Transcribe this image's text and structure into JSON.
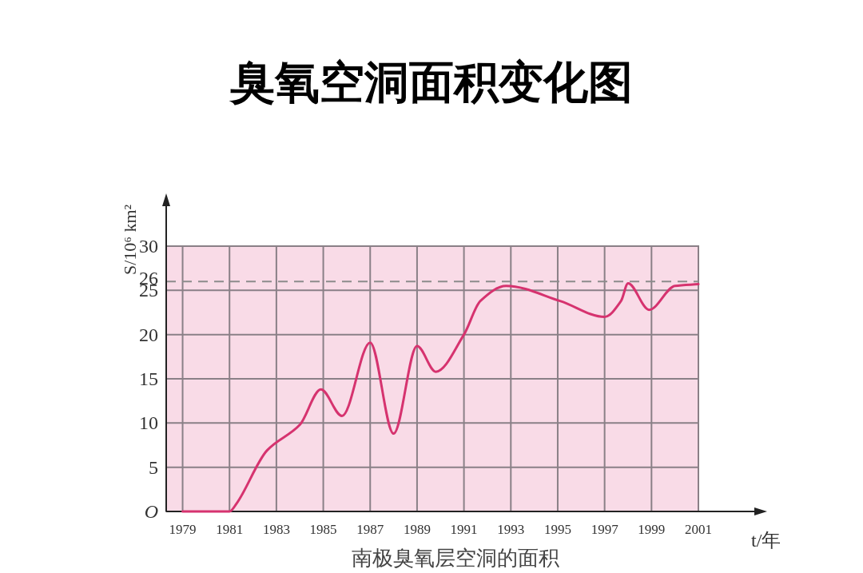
{
  "chart_data": {
    "type": "line",
    "title": "臭氧空洞面积变化图",
    "xlabel": "t/年",
    "ylabel": "S/10⁶ km²",
    "annotations": [
      "南极臭氧层空洞的面积"
    ],
    "x": [
      1979,
      1980,
      1981,
      1981.3,
      1982.6,
      1984,
      1984.9,
      1985.8,
      1987,
      1988,
      1989,
      1989.8,
      1991,
      1991.7,
      1992.8,
      1995.1,
      1997,
      1997.7,
      1998,
      1998.9,
      2000,
      2001
    ],
    "series": [
      {
        "color": "#d6336f",
        "values": [
          0,
          0,
          0,
          0.9,
          6.9,
          9.8,
          13.8,
          10.8,
          19.1,
          8.8,
          18.7,
          15.8,
          20,
          23.8,
          25.5,
          23.8,
          22,
          23.8,
          25.8,
          22.8,
          25.5,
          25.7
        ]
      }
    ],
    "xlim": [
      1978.3,
      2001
    ],
    "xticks": [
      1979,
      1981,
      1983,
      1985,
      1987,
      1989,
      1991,
      1993,
      1995,
      1997,
      1999,
      2001
    ],
    "ylim": [
      0,
      30
    ],
    "yticks": [
      {
        "value": 0,
        "label": "O"
      },
      5,
      10,
      15,
      20,
      25,
      30
    ],
    "grid": true,
    "ref_lines": [
      {
        "axis": "y",
        "value": 26,
        "label": "26",
        "line_style": "dashed",
        "color": "#8c8c8c"
      }
    ],
    "line_style": "solid"
  }
}
